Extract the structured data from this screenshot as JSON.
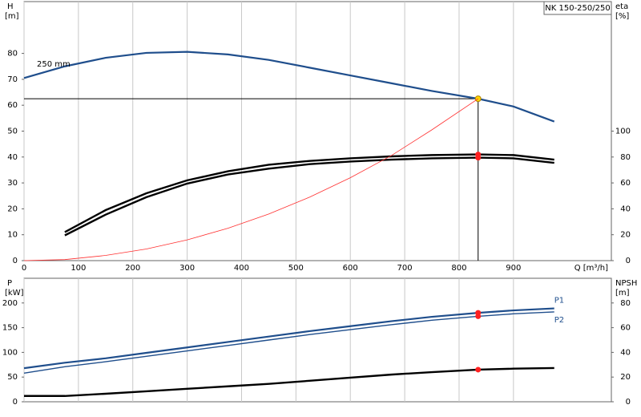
{
  "chart_data": [
    {
      "type": "line",
      "title": "NK 150-250/250",
      "xlabel": "Q [m³/h]",
      "ylabel": "H",
      "yunit": "[m]",
      "y2label": "eta",
      "y2unit": "[%]",
      "x": [
        0,
        75,
        150,
        225,
        300,
        375,
        450,
        525,
        600,
        675,
        750,
        835,
        900,
        975
      ],
      "xlim": [
        0,
        1080
      ],
      "xticks": [
        0,
        100,
        200,
        300,
        400,
        500,
        600,
        700,
        800,
        900
      ],
      "ylim": [
        0,
        100
      ],
      "yticks": [
        0,
        10,
        20,
        30,
        40,
        50,
        60,
        70,
        80
      ],
      "y2lim": [
        0,
        200
      ],
      "y2ticks": [
        0,
        20,
        40,
        60,
        80,
        100
      ],
      "grid": true,
      "duty_point": {
        "x": 835,
        "y": 62.5
      },
      "series": [
        {
          "name": "250 mm",
          "color": "#1f4e8c",
          "axis": "y",
          "width": 2.2,
          "marker_color": "#ffd700",
          "values": [
            70.5,
            75,
            78.3,
            80.2,
            80.6,
            79.6,
            77.5,
            74.5,
            71.5,
            68.5,
            65.5,
            62.5,
            59.5,
            53.7
          ]
        },
        {
          "color": "#000000",
          "axis": "y2",
          "width": 2.4,
          "marker_color": "#ff2020",
          "values": [
            null,
            22,
            39,
            52,
            62,
            69,
            74,
            77,
            79,
            80.5,
            81.5,
            82,
            81.5,
            78
          ]
        },
        {
          "color": "#000000",
          "axis": "y2",
          "width": 2.4,
          "marker_color": "#ff2020",
          "values": [
            null,
            19.5,
            35.5,
            49,
            59.5,
            66.5,
            71,
            74.5,
            76.5,
            78,
            79,
            79.5,
            79,
            75.5
          ]
        },
        {
          "color": "#ff3030",
          "axis": "y",
          "width": 0.8,
          "values": [
            0,
            0.4,
            2,
            4.5,
            8,
            12.5,
            18,
            24.5,
            32,
            40.5,
            50.5,
            62.5,
            null,
            null
          ]
        }
      ]
    },
    {
      "type": "line",
      "ylabel": "P",
      "yunit": "[kW]",
      "y2label": "NPSH",
      "y2unit": "[m]",
      "x": [
        0,
        75,
        150,
        225,
        300,
        375,
        450,
        525,
        600,
        675,
        750,
        835,
        900,
        975
      ],
      "xlim": [
        0,
        1080
      ],
      "xticks": [
        0,
        100,
        200,
        300,
        400,
        500,
        600,
        700,
        800,
        900
      ],
      "ylim": [
        0,
        250
      ],
      "yticks": [
        0,
        50,
        100,
        150,
        200
      ],
      "y2lim": [
        0,
        100
      ],
      "y2ticks": [
        0,
        20,
        40,
        60,
        80
      ],
      "grid": true,
      "duty_point": {
        "x": 835
      },
      "series": [
        {
          "name": "P1",
          "color": "#1f4e8c",
          "axis": "y",
          "width": 2.2,
          "marker_color": "#ff2020",
          "values": [
            68,
            79,
            88,
            99,
            110,
            121,
            132,
            143,
            153,
            163,
            172,
            180,
            185,
            189
          ]
        },
        {
          "name": "P2",
          "color": "#1f4e8c",
          "axis": "y",
          "width": 1.4,
          "marker_color": "#ff2020",
          "values": [
            58,
            71,
            81,
            92,
            103,
            114,
            125,
            136,
            146,
            156,
            165,
            173,
            178,
            182
          ]
        },
        {
          "color": "#000000",
          "axis": "y2",
          "width": 2.4,
          "marker_color": "#ff2020",
          "values": [
            4.7,
            4.7,
            6.5,
            8.5,
            10.5,
            12.5,
            14.5,
            17,
            19.5,
            22,
            24,
            26,
            26.8,
            27.3
          ]
        }
      ]
    }
  ]
}
